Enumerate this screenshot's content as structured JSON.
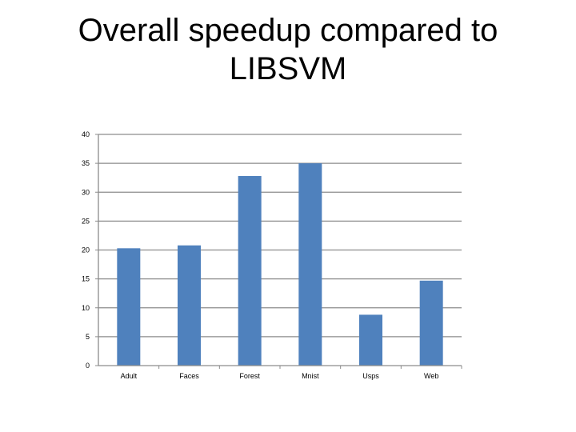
{
  "slide": {
    "title_line1": "Overall speedup compared to",
    "title_line2": "LIBSVM"
  },
  "chart_data": {
    "type": "bar",
    "title": "",
    "xlabel": "",
    "ylabel": "",
    "categories": [
      "Adult",
      "Faces",
      "Forest",
      "Mnist",
      "Usps",
      "Web"
    ],
    "values": [
      20.3,
      20.8,
      32.8,
      35.0,
      8.8,
      14.7
    ],
    "ylim": [
      0,
      40
    ],
    "yticks": [
      "0",
      "5",
      "10",
      "15",
      "20",
      "25",
      "30",
      "35",
      "40"
    ],
    "grid": true,
    "legend": "none",
    "colors": {
      "bar": "#4f81bd",
      "grid": "#8c8c8c",
      "axis": "#8c8c8c"
    }
  }
}
